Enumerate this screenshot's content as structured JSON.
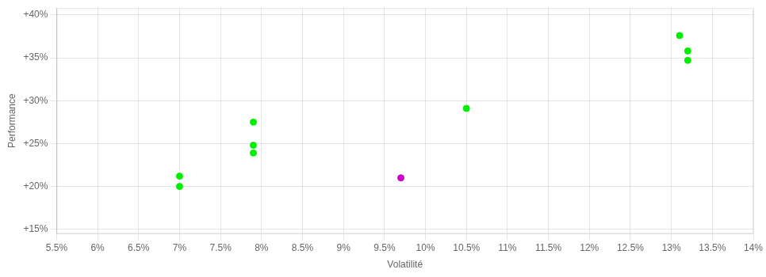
{
  "chart_data": {
    "type": "scatter",
    "xlabel": "Volatilité",
    "ylabel": "Performance",
    "xlim": [
      0.055,
      0.14
    ],
    "ylim": [
      0.145,
      0.408
    ],
    "xticks": [
      {
        "value": 0.055,
        "label": "5.5%"
      },
      {
        "value": 0.06,
        "label": "6%"
      },
      {
        "value": 0.065,
        "label": "6.5%"
      },
      {
        "value": 0.07,
        "label": "7%"
      },
      {
        "value": 0.075,
        "label": "7.5%"
      },
      {
        "value": 0.08,
        "label": "8%"
      },
      {
        "value": 0.085,
        "label": "8.5%"
      },
      {
        "value": 0.09,
        "label": "9%"
      },
      {
        "value": 0.095,
        "label": "9.5%"
      },
      {
        "value": 0.1,
        "label": "10%"
      },
      {
        "value": 0.105,
        "label": "10.5%"
      },
      {
        "value": 0.11,
        "label": "11%"
      },
      {
        "value": 0.115,
        "label": "11.5%"
      },
      {
        "value": 0.12,
        "label": "12%"
      },
      {
        "value": 0.125,
        "label": "12.5%"
      },
      {
        "value": 0.13,
        "label": "13%"
      },
      {
        "value": 0.135,
        "label": "13.5%"
      },
      {
        "value": 0.14,
        "label": "14%"
      }
    ],
    "yticks": [
      {
        "value": 0.15,
        "label": "+15%"
      },
      {
        "value": 0.2,
        "label": "+20%"
      },
      {
        "value": 0.25,
        "label": "+25%"
      },
      {
        "value": 0.3,
        "label": "+30%"
      },
      {
        "value": 0.35,
        "label": "+35%"
      },
      {
        "value": 0.4,
        "label": "+40%"
      }
    ],
    "grid": true,
    "marker": "circle",
    "series": [
      {
        "color": "#00ee00",
        "x": [
          0.07,
          0.07,
          0.079,
          0.079,
          0.079,
          0.105,
          0.131,
          0.132,
          0.132
        ],
        "y": [
          0.2,
          0.212,
          0.275,
          0.248,
          0.239,
          0.291,
          0.376,
          0.358,
          0.347
        ]
      },
      {
        "color": "#cc00cc",
        "x": [
          0.097
        ],
        "y": [
          0.21
        ]
      }
    ]
  }
}
